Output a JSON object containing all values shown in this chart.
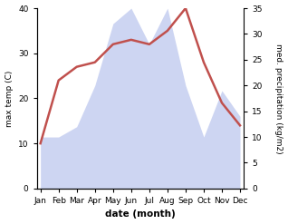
{
  "months": [
    "Jan",
    "Feb",
    "Mar",
    "Apr",
    "May",
    "Jun",
    "Jul",
    "Aug",
    "Sep",
    "Oct",
    "Nov",
    "Dec"
  ],
  "temperature": [
    10,
    24,
    27,
    28,
    32,
    33,
    32,
    35,
    40,
    28,
    19,
    14
  ],
  "precipitation": [
    10,
    10,
    12,
    20,
    32,
    35,
    28,
    35,
    20,
    10,
    19,
    14
  ],
  "temp_color": "#c0504d",
  "precip_fill_color": "#c5cef0",
  "temp_ylim": [
    0,
    40
  ],
  "precip_ylim": [
    0,
    35
  ],
  "temp_yticks": [
    0,
    10,
    20,
    30,
    40
  ],
  "precip_yticks": [
    0,
    5,
    10,
    15,
    20,
    25,
    30,
    35
  ],
  "xlabel": "date (month)",
  "ylabel_left": "max temp (C)",
  "ylabel_right": "med. precipitation (kg/m2)",
  "figsize": [
    3.18,
    2.47
  ],
  "dpi": 100
}
